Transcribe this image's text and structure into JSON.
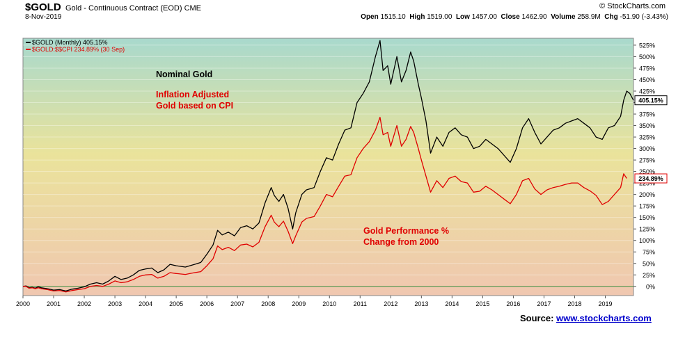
{
  "header": {
    "symbol": "$GOLD",
    "description": "Gold - Continuous Contract (EOD)",
    "exchange": "CME",
    "date": "8-Nov-2019",
    "brand": "© StockCharts.com",
    "open_label": "Open",
    "open": "1515.10",
    "high_label": "High",
    "high": "1519.00",
    "low_label": "Low",
    "low": "1457.00",
    "close_label": "Close",
    "close": "1462.90",
    "volume_label": "Volume",
    "volume": "258.9M",
    "chg_label": "Chg",
    "chg": "-51.90 (-3.43%)"
  },
  "source": {
    "label": "Source:",
    "link": "www.stockcharts.com"
  },
  "colors": {
    "nominal": "#000000",
    "cpi": "#e00000",
    "zero_line": "#3a8a3a",
    "text_red": "#e00000"
  },
  "chart_data": {
    "type": "line",
    "x_tick_labels": [
      "2000",
      "2001",
      "2002",
      "2003",
      "2004",
      "2005",
      "2006",
      "2007",
      "2008",
      "2009",
      "2010",
      "2011",
      "2012",
      "2013",
      "2014",
      "2015",
      "2016",
      "2017",
      "2018",
      "2019"
    ],
    "y_tick_labels": [
      "0%",
      "25%",
      "50%",
      "75%",
      "100%",
      "125%",
      "150%",
      "175%",
      "200%",
      "225%",
      "250%",
      "275%",
      "300%",
      "325%",
      "350%",
      "375%",
      "400%",
      "425%",
      "450%",
      "475%",
      "500%",
      "525%"
    ],
    "ylim": [
      -20,
      540
    ],
    "xlim": [
      2000,
      2019.92
    ],
    "legend": [
      {
        "label": "$GOLD (Monthly) 405.15%"
      },
      {
        "label": "$GOLD:$$CPI 234.89% (30 Sep)"
      }
    ],
    "end_labels": [
      "405.15%",
      "234.89%"
    ],
    "annotations": [
      {
        "text": "Nominal Gold",
        "color": "#000000"
      },
      {
        "text": "Inflation Adjusted",
        "color": "#e00000"
      },
      {
        "text": "Gold  based on CPI",
        "color": "#e00000"
      },
      {
        "text": "Gold Performance %",
        "color": "#e00000"
      },
      {
        "text": "Change from 2000",
        "color": "#e00000"
      }
    ],
    "series": [
      {
        "name": "$GOLD (Monthly)",
        "x": [
          2000,
          2000.1,
          2000.2,
          2000.3,
          2000.4,
          2000.5,
          2000.6,
          2000.8,
          2001,
          2001.2,
          2001.4,
          2001.6,
          2001.8,
          2002,
          2002.2,
          2002.4,
          2002.6,
          2002.8,
          2003,
          2003.2,
          2003.4,
          2003.6,
          2003.8,
          2004,
          2004.2,
          2004.4,
          2004.6,
          2004.8,
          2005,
          2005.3,
          2005.6,
          2005.8,
          2006,
          2006.2,
          2006.35,
          2006.5,
          2006.7,
          2006.9,
          2007.1,
          2007.3,
          2007.5,
          2007.7,
          2007.9,
          2008.1,
          2008.2,
          2008.35,
          2008.5,
          2008.65,
          2008.8,
          2008.9,
          2009.1,
          2009.25,
          2009.5,
          2009.7,
          2009.9,
          2010.1,
          2010.3,
          2010.5,
          2010.7,
          2010.9,
          2011.1,
          2011.3,
          2011.5,
          2011.65,
          2011.75,
          2011.9,
          2012,
          2012.2,
          2012.35,
          2012.5,
          2012.65,
          2012.75,
          2012.9,
          2013,
          2013.15,
          2013.3,
          2013.5,
          2013.7,
          2013.9,
          2014.1,
          2014.3,
          2014.5,
          2014.7,
          2014.9,
          2015.1,
          2015.3,
          2015.5,
          2015.7,
          2015.9,
          2016.1,
          2016.3,
          2016.5,
          2016.7,
          2016.9,
          2017.1,
          2017.3,
          2017.5,
          2017.7,
          2017.9,
          2018.1,
          2018.3,
          2018.5,
          2018.7,
          2018.9,
          2019.1,
          2019.3,
          2019.5,
          2019.6,
          2019.7,
          2019.8,
          2019.92
        ],
        "values": [
          0,
          1,
          -3,
          -2,
          -4,
          -1,
          -3,
          -5,
          -8,
          -7,
          -10,
          -6,
          -4,
          -1,
          5,
          8,
          5,
          12,
          22,
          15,
          18,
          25,
          35,
          38,
          40,
          30,
          36,
          48,
          45,
          42,
          48,
          52,
          70,
          90,
          122,
          112,
          118,
          110,
          128,
          132,
          125,
          138,
          182,
          215,
          198,
          185,
          200,
          170,
          125,
          160,
          200,
          210,
          215,
          250,
          280,
          275,
          310,
          340,
          345,
          400,
          420,
          445,
          500,
          535,
          470,
          480,
          440,
          500,
          445,
          470,
          510,
          490,
          440,
          410,
          360,
          290,
          325,
          305,
          335,
          345,
          330,
          325,
          300,
          305,
          320,
          310,
          300,
          285,
          270,
          300,
          345,
          365,
          335,
          310,
          325,
          340,
          345,
          355,
          360,
          365,
          355,
          345,
          325,
          320,
          345,
          350,
          370,
          405,
          425,
          420,
          405
        ]
      },
      {
        "name": "$GOLD:$$CPI",
        "x": [
          2000,
          2000.1,
          2000.2,
          2000.3,
          2000.4,
          2000.5,
          2000.6,
          2000.8,
          2001,
          2001.2,
          2001.4,
          2001.6,
          2001.8,
          2002,
          2002.2,
          2002.4,
          2002.6,
          2002.8,
          2003,
          2003.2,
          2003.4,
          2003.6,
          2003.8,
          2004,
          2004.2,
          2004.4,
          2004.6,
          2004.8,
          2005,
          2005.3,
          2005.6,
          2005.8,
          2006,
          2006.2,
          2006.35,
          2006.5,
          2006.7,
          2006.9,
          2007.1,
          2007.3,
          2007.5,
          2007.7,
          2007.9,
          2008.1,
          2008.2,
          2008.35,
          2008.5,
          2008.65,
          2008.8,
          2008.9,
          2009.1,
          2009.25,
          2009.5,
          2009.7,
          2009.9,
          2010.1,
          2010.3,
          2010.5,
          2010.7,
          2010.9,
          2011.1,
          2011.3,
          2011.5,
          2011.65,
          2011.75,
          2011.9,
          2012,
          2012.2,
          2012.35,
          2012.5,
          2012.65,
          2012.75,
          2012.9,
          2013,
          2013.15,
          2013.3,
          2013.5,
          2013.7,
          2013.9,
          2014.1,
          2014.3,
          2014.5,
          2014.7,
          2014.9,
          2015.1,
          2015.3,
          2015.5,
          2015.7,
          2015.9,
          2016.1,
          2016.3,
          2016.5,
          2016.7,
          2016.9,
          2017.1,
          2017.3,
          2017.5,
          2017.7,
          2017.9,
          2018.1,
          2018.3,
          2018.5,
          2018.7,
          2018.9,
          2019.1,
          2019.3,
          2019.5,
          2019.6,
          2019.7
        ],
        "values": [
          0,
          0,
          -4,
          -3,
          -5,
          -3,
          -5,
          -7,
          -10,
          -9,
          -12,
          -9,
          -7,
          -5,
          0,
          2,
          0,
          5,
          12,
          8,
          10,
          15,
          22,
          25,
          26,
          18,
          22,
          30,
          28,
          26,
          30,
          32,
          45,
          60,
          88,
          80,
          85,
          78,
          90,
          92,
          86,
          96,
          130,
          155,
          140,
          130,
          142,
          120,
          93,
          110,
          140,
          148,
          152,
          175,
          200,
          195,
          218,
          240,
          243,
          280,
          300,
          315,
          340,
          368,
          330,
          335,
          305,
          350,
          305,
          320,
          348,
          335,
          300,
          275,
          240,
          205,
          230,
          215,
          235,
          240,
          228,
          225,
          205,
          207,
          218,
          210,
          200,
          190,
          180,
          200,
          230,
          235,
          212,
          200,
          210,
          215,
          218,
          222,
          225,
          225,
          215,
          208,
          198,
          178,
          185,
          200,
          215,
          245,
          235
        ]
      }
    ]
  }
}
